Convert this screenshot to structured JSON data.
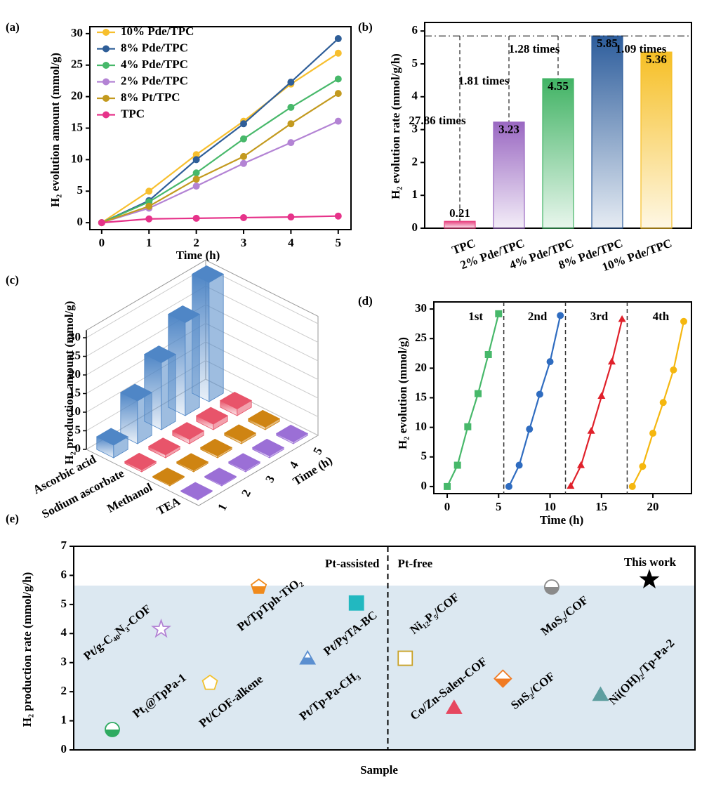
{
  "chart_data": [
    {
      "type": "line",
      "label": "(a)",
      "xlabel": "Time (h)",
      "ylabel": "H₂ evolution amount (mmol/g)",
      "x": [
        0,
        1,
        2,
        3,
        4,
        5
      ],
      "xlim": [
        -0.25,
        5.27
      ],
      "ylim": [
        -1.1,
        31.1
      ],
      "xticks": [
        0,
        1,
        2,
        3,
        4,
        5
      ],
      "yticks": [
        0,
        5,
        10,
        15,
        20,
        25,
        30
      ],
      "legend": "upper left",
      "series": [
        {
          "name": "10% Pde/TPC",
          "color": "#f7bf2e",
          "marker": "circle",
          "values": [
            0,
            5.0,
            10.8,
            16.1,
            22.0,
            26.9
          ]
        },
        {
          "name": "8% Pde/TPC",
          "color": "#2f5e98",
          "marker": "circle",
          "values": [
            0,
            3.5,
            10.0,
            15.7,
            22.3,
            29.2
          ]
        },
        {
          "name": "4% Pde/TPC",
          "color": "#47b86a",
          "marker": "circle",
          "values": [
            0,
            3.3,
            7.9,
            13.3,
            18.3,
            22.8
          ]
        },
        {
          "name": "2% Pde/TPC",
          "color": "#b383d4",
          "marker": "circle",
          "values": [
            0,
            2.3,
            5.8,
            9.4,
            12.7,
            16.1
          ]
        },
        {
          "name": "8% Pt/TPC",
          "color": "#c39a1f",
          "marker": "circle",
          "values": [
            0,
            2.6,
            6.9,
            10.5,
            15.7,
            20.5
          ]
        },
        {
          "name": "TPC",
          "color": "#e6338a",
          "marker": "circle",
          "values": [
            0,
            0.6,
            0.7,
            0.8,
            0.9,
            1.05
          ]
        }
      ]
    },
    {
      "type": "bar",
      "label": "(b)",
      "ylabel": "H₂ evolution rate (mmol/g/h)",
      "categories": [
        "TPC",
        "2% Pde/TPC",
        "4% Pde/TPC",
        "8% Pde/TPC",
        "10% Pde/TPC"
      ],
      "values": [
        0.21,
        3.23,
        4.55,
        5.85,
        5.36
      ],
      "colors": [
        "#e8417f",
        "#9a68c2",
        "#41b364",
        "#2d5d9c",
        "#f6bf25"
      ],
      "annotations": [
        "27.86 times",
        "1.81 times",
        "1.28 times",
        null,
        "1.09 times"
      ],
      "ylim": [
        0,
        6.26
      ],
      "yticks": [
        0,
        1,
        2,
        3,
        4,
        5,
        6
      ]
    },
    {
      "type": "bar3d",
      "label": "(c)",
      "zlabel": "H₂ production amount (mmol/g)",
      "xlabel": "Time (h)",
      "x": [
        1,
        2,
        3,
        4,
        5
      ],
      "xticks": [
        1,
        2,
        3,
        4,
        5
      ],
      "zlim": [
        0,
        32
      ],
      "zticks": [
        0,
        5,
        10,
        15,
        20,
        25,
        30
      ],
      "series": [
        {
          "name": "Ascorbic acid",
          "color": "#4f86c6",
          "values": [
            3.4,
            11.5,
            18.0,
            25.0,
            32.0
          ]
        },
        {
          "name": "Sodium ascorbate",
          "color": "#e8546a",
          "values": [
            0.5,
            0.8,
            1.2,
            1.5,
            1.8
          ]
        },
        {
          "name": "Methanol",
          "color": "#cf8412",
          "values": [
            0.3,
            0.4,
            0.5,
            0.6,
            0.7
          ]
        },
        {
          "name": "TEA",
          "color": "#9b6fd6",
          "values": [
            0.2,
            0.3,
            0.4,
            0.5,
            0.5
          ]
        }
      ]
    },
    {
      "type": "line",
      "label": "(d)",
      "xlabel": "Time (h)",
      "ylabel": "H₂ evolution (mmol/g)",
      "xlim": [
        -1.3,
        23.75
      ],
      "ylim": [
        -1.2,
        31.2
      ],
      "xticks": [
        0,
        5,
        10,
        15,
        20
      ],
      "yticks": [
        0,
        5,
        10,
        15,
        20,
        25,
        30
      ],
      "legend": "inline",
      "series": [
        {
          "name": "1st",
          "color": "#47b86a",
          "marker": "square",
          "x": [
            0,
            1,
            2,
            3,
            4,
            5
          ],
          "values": [
            0,
            3.6,
            10.1,
            15.7,
            22.3,
            29.2
          ]
        },
        {
          "name": "2nd",
          "color": "#2f6cc0",
          "marker": "circle",
          "x": [
            6,
            7,
            8,
            9,
            10,
            11
          ],
          "values": [
            0,
            3.6,
            9.7,
            15.6,
            21.1,
            28.9
          ]
        },
        {
          "name": "3rd",
          "color": "#e0212b",
          "marker": "triangle",
          "x": [
            12,
            13,
            14,
            15,
            16,
            17
          ],
          "values": [
            0,
            3.5,
            9.3,
            15.2,
            21.0,
            28.2
          ]
        },
        {
          "name": "4th",
          "color": "#f5b70f",
          "marker": "circle",
          "x": [
            18,
            19,
            20,
            21,
            22,
            23
          ],
          "values": [
            0,
            3.4,
            9.0,
            14.2,
            19.7,
            27.9
          ]
        }
      ]
    },
    {
      "type": "scatter",
      "label": "(e)",
      "xlabel": "Sample",
      "ylabel": "H₂ production rate (mmol/g/h)",
      "ylim": [
        0,
        7
      ],
      "yticks": [
        0,
        1,
        2,
        3,
        4,
        5,
        6,
        7
      ],
      "group_labels": [
        "Pt-assisted",
        "Pt-free"
      ],
      "categories": [
        "Pt₁@TpPa-1",
        "Pt/g-C₄₀N₃-COF",
        "Pt/COF-alkene",
        "Pt/TpTph-TiO₂",
        "Pt/Tp-Pa-CH₃",
        "Pt/PyTA-BC",
        "Ni₁₂P₅/COF",
        "Co/Zn-Salen-COF",
        "SnS₂/COF",
        "MoS₂/COF",
        "Ni(OH)₂/Tp-Pa-2",
        "This work"
      ],
      "values": [
        0.7,
        4.15,
        2.3,
        5.6,
        3.1,
        5.05,
        3.15,
        1.4,
        2.45,
        5.6,
        1.85,
        5.85
      ],
      "colors": [
        "#2eaa60",
        "#b383d4",
        "#f2c12e",
        "#f08a1c",
        "#5b8fd0",
        "#22b8c0",
        "#c9a227",
        "#e6475f",
        "#f07a22",
        "#8a8a8a",
        "#5e9ea0",
        "#000000"
      ],
      "markers": [
        "circle-half",
        "star-open",
        "pentagon-open",
        "pentagon-half",
        "triangle-half",
        "square",
        "square-open",
        "triangle-right",
        "diamond-half",
        "circle-half",
        "triangle-left",
        "star"
      ]
    }
  ]
}
